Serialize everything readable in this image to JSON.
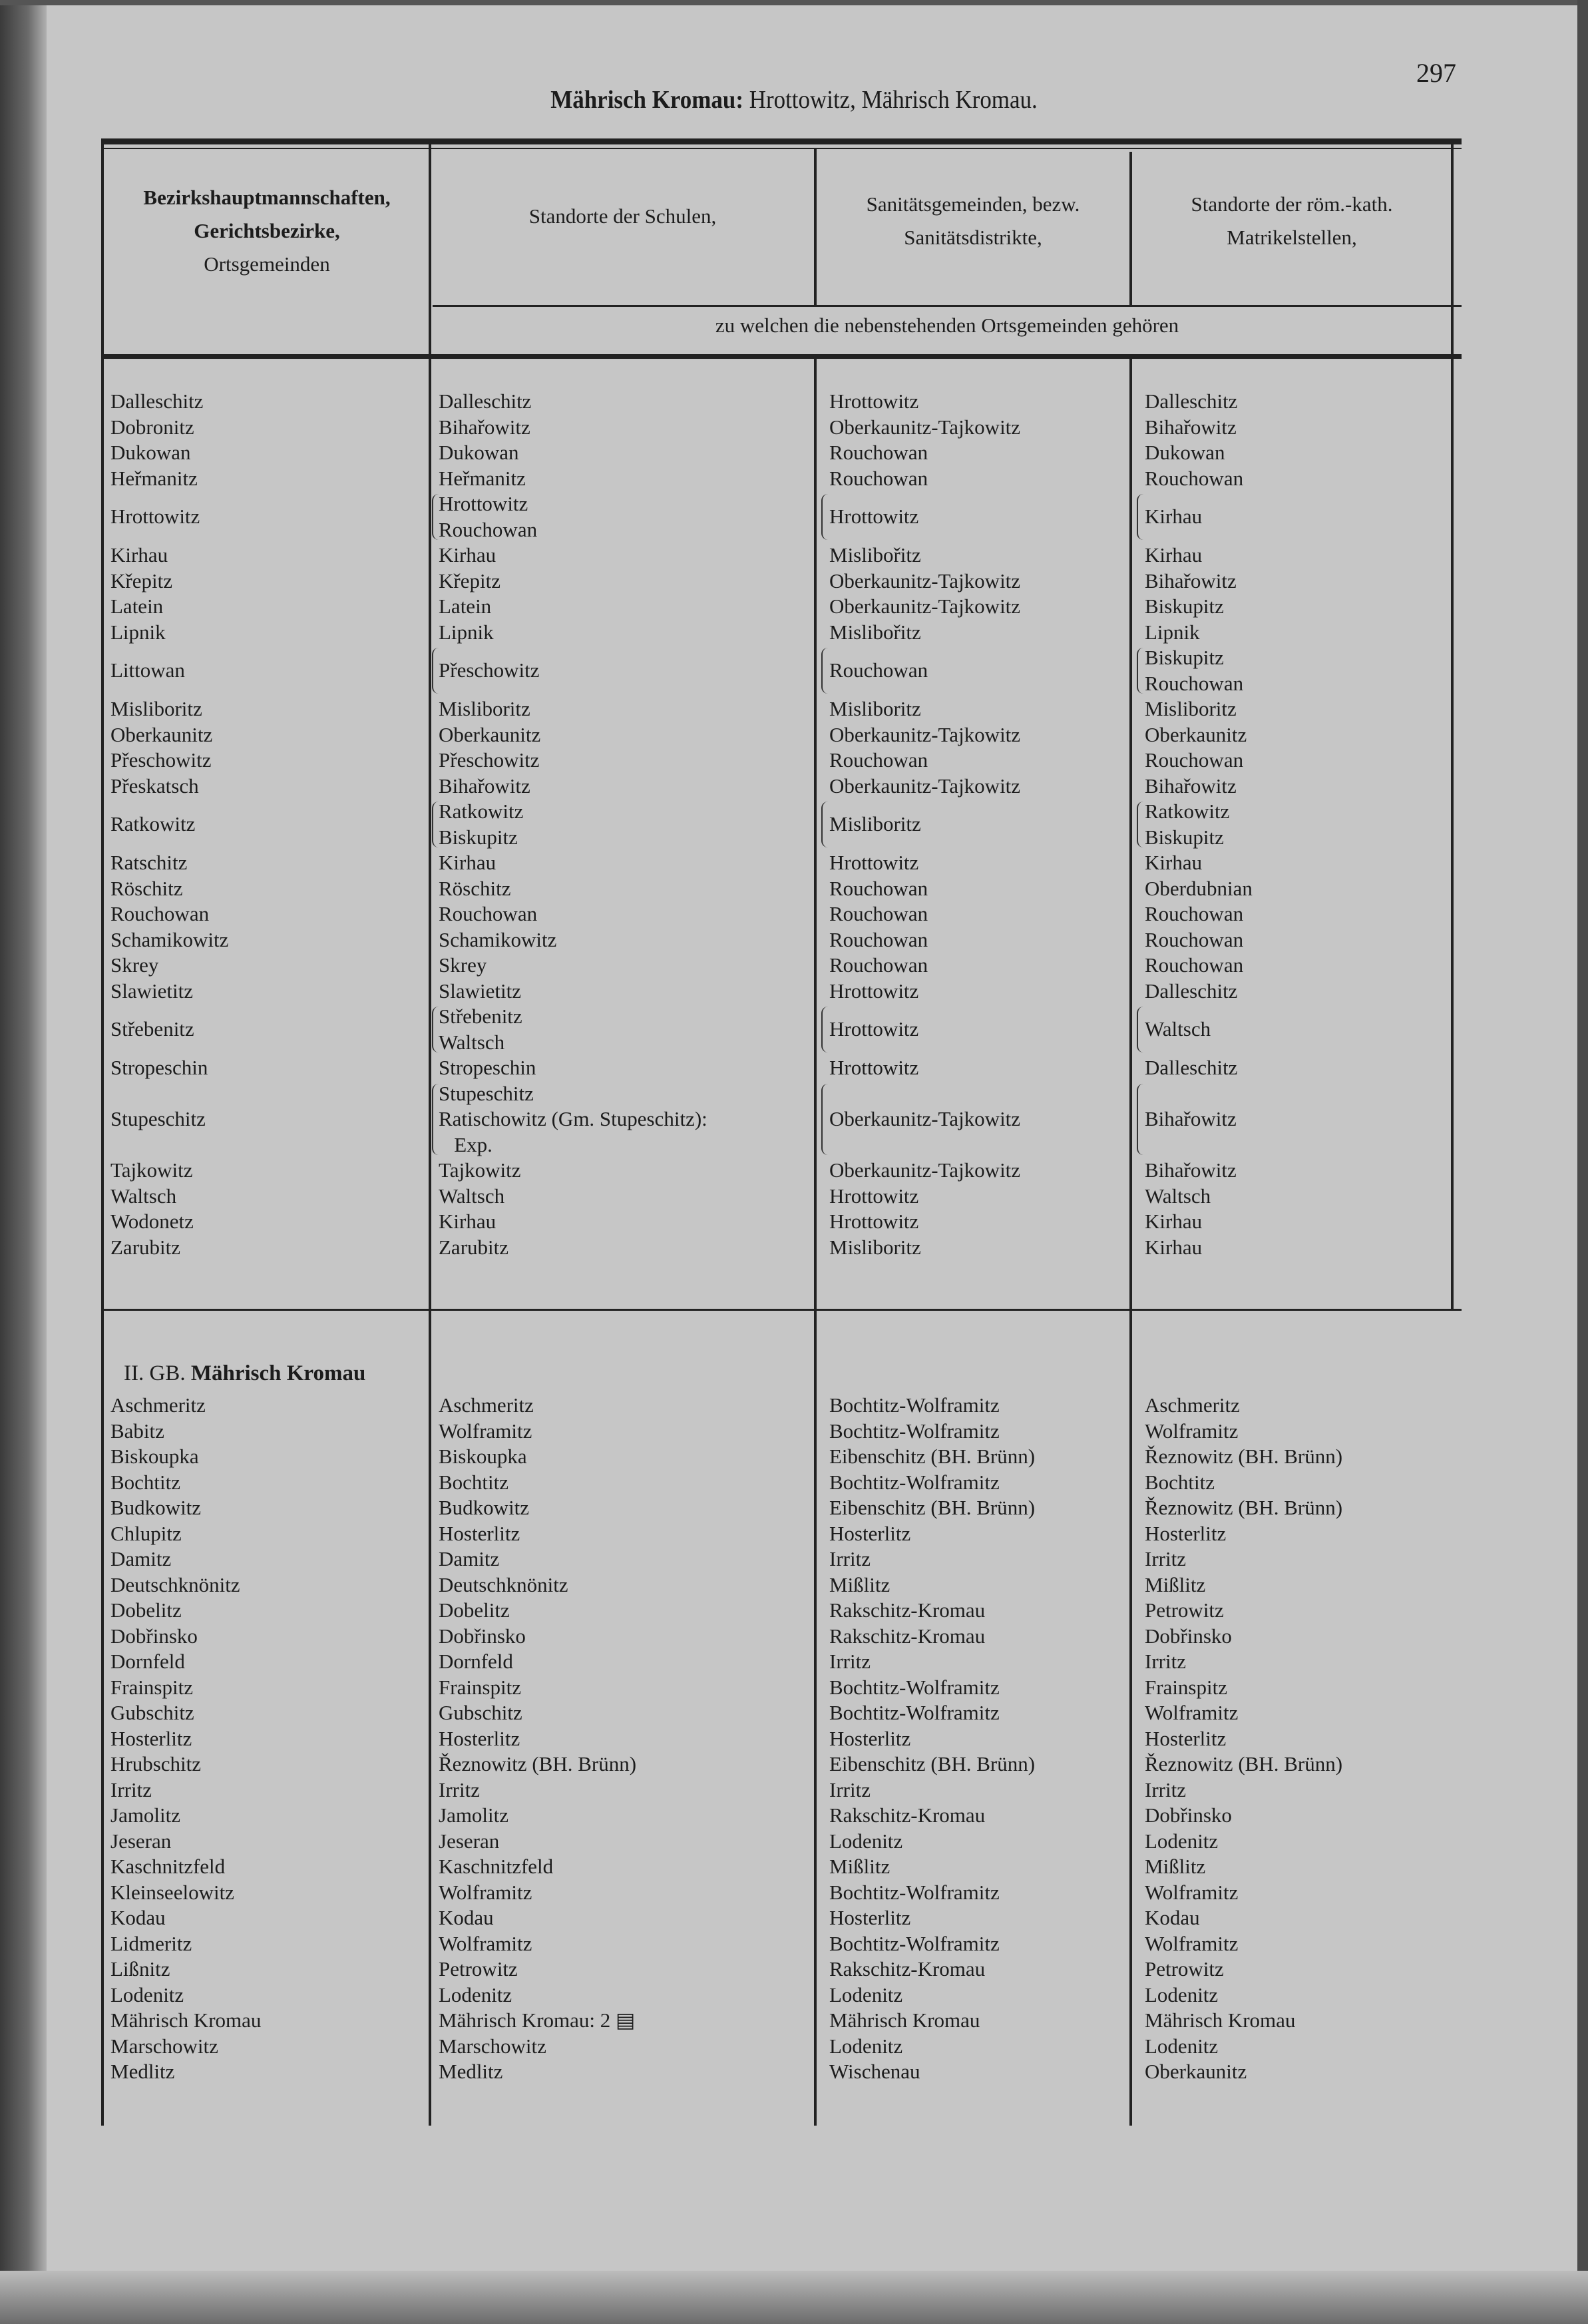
{
  "page": {
    "title_bold": "Mährisch Kromau:",
    "title_rest": " Hrottowitz, Mährisch Kromau.",
    "page_number": "297"
  },
  "header": {
    "col1": [
      "Bezirkshauptmannschaften,",
      "Gerichtsbezirke,",
      "Ortsgemeinden"
    ],
    "col2": "Standorte der Schulen,",
    "col3": [
      "Sanitätsgemeinden, bezw.",
      "Sanitätsdistrikte,"
    ],
    "col4": [
      "Standorte der röm.-kath.",
      "Matrikelstellen,"
    ],
    "subheader": "zu welchen die nebenstehenden Ortsgemeinden gehören"
  },
  "sections": [
    {
      "heading_prefix": "",
      "heading_bold": "",
      "rows": [
        [
          "Dalleschitz",
          [
            "Dalleschitz"
          ],
          [
            "Hrottowitz"
          ],
          [
            "Dalleschitz"
          ]
        ],
        [
          "Dobronitz",
          [
            "Bihařowitz"
          ],
          [
            "Oberkaunitz-Tajkowitz"
          ],
          [
            "Bihařowitz"
          ]
        ],
        [
          "Dukowan",
          [
            "Dukowan"
          ],
          [
            "Rouchowan"
          ],
          [
            "Dukowan"
          ]
        ],
        [
          "Heřmanitz",
          [
            "Heřmanitz"
          ],
          [
            "Rouchowan"
          ],
          [
            "Rouchowan"
          ]
        ],
        [
          "Hrottowitz",
          [
            "Hrottowitz",
            "Rouchowan"
          ],
          [
            "Hrottowitz"
          ],
          [
            "Kirhau"
          ]
        ],
        [
          "Kirhau",
          [
            "Kirhau"
          ],
          [
            "Mislibořitz"
          ],
          [
            "Kirhau"
          ]
        ],
        [
          "Křepitz",
          [
            "Křepitz"
          ],
          [
            "Oberkaunitz-Tajkowitz"
          ],
          [
            "Bihařowitz"
          ]
        ],
        [
          "Latein",
          [
            "Latein"
          ],
          [
            "Oberkaunitz-Tajkowitz"
          ],
          [
            "Biskupitz"
          ]
        ],
        [
          "Lipnik",
          [
            "Lipnik"
          ],
          [
            "Mislibořitz"
          ],
          [
            "Lipnik"
          ]
        ],
        [
          "Littowan",
          [
            "Přeschowitz"
          ],
          [
            "Rouchowan"
          ],
          [
            "Biskupitz",
            "Rouchowan"
          ]
        ],
        [
          "Misliboritz",
          [
            "Misliboritz"
          ],
          [
            "Misliboritz"
          ],
          [
            "Misliboritz"
          ]
        ],
        [
          "Oberkaunitz",
          [
            "Oberkaunitz"
          ],
          [
            "Oberkaunitz-Tajkowitz"
          ],
          [
            "Oberkaunitz"
          ]
        ],
        [
          "Přeschowitz",
          [
            "Přeschowitz"
          ],
          [
            "Rouchowan"
          ],
          [
            "Rouchowan"
          ]
        ],
        [
          "Přeskatsch",
          [
            "Bihařowitz"
          ],
          [
            "Oberkaunitz-Tajkowitz"
          ],
          [
            "Bihařowitz"
          ]
        ],
        [
          "Ratkowitz",
          [
            "Ratkowitz",
            "Biskupitz"
          ],
          [
            "Misliboritz"
          ],
          [
            "Ratkowitz",
            "Biskupitz"
          ]
        ],
        [
          "Ratschitz",
          [
            "Kirhau"
          ],
          [
            "Hrottowitz"
          ],
          [
            "Kirhau"
          ]
        ],
        [
          "Röschitz",
          [
            "Röschitz"
          ],
          [
            "Rouchowan"
          ],
          [
            "Oberdubnian"
          ]
        ],
        [
          "Rouchowan",
          [
            "Rouchowan"
          ],
          [
            "Rouchowan"
          ],
          [
            "Rouchowan"
          ]
        ],
        [
          "Schamikowitz",
          [
            "Schamikowitz"
          ],
          [
            "Rouchowan"
          ],
          [
            "Rouchowan"
          ]
        ],
        [
          "Skrey",
          [
            "Skrey"
          ],
          [
            "Rouchowan"
          ],
          [
            "Rouchowan"
          ]
        ],
        [
          "Slawietitz",
          [
            "Slawietitz"
          ],
          [
            "Hrottowitz"
          ],
          [
            "Dalleschitz"
          ]
        ],
        [
          "Střebenitz",
          [
            "Střebenitz",
            "Waltsch"
          ],
          [
            "Hrottowitz"
          ],
          [
            "Waltsch"
          ]
        ],
        [
          "Stropeschin",
          [
            "Stropeschin"
          ],
          [
            "Hrottowitz"
          ],
          [
            "Dalleschitz"
          ]
        ],
        [
          "Stupeschitz",
          [
            "Stupeschitz",
            "Ratischowitz (Gm. Stupeschitz):",
            "   Exp."
          ],
          [
            "Oberkaunitz-Tajkowitz"
          ],
          [
            "Bihařowitz"
          ]
        ],
        [
          "Tajkowitz",
          [
            "Tajkowitz"
          ],
          [
            "Oberkaunitz-Tajkowitz"
          ],
          [
            "Bihařowitz"
          ]
        ],
        [
          "Waltsch",
          [
            "Waltsch"
          ],
          [
            "Hrottowitz"
          ],
          [
            "Waltsch"
          ]
        ],
        [
          "Wodonetz",
          [
            "Kirhau"
          ],
          [
            "Hrottowitz"
          ],
          [
            "Kirhau"
          ]
        ],
        [
          "Zarubitz",
          [
            "Zarubitz"
          ],
          [
            "Misliboritz"
          ],
          [
            "Kirhau"
          ]
        ]
      ]
    },
    {
      "heading_prefix": "II. GB. ",
      "heading_bold": "Mährisch Kromau",
      "rows": [
        [
          "Aschmeritz",
          [
            "Aschmeritz"
          ],
          [
            "Bochtitz-Wolframitz"
          ],
          [
            "Aschmeritz"
          ]
        ],
        [
          "Babitz",
          [
            "Wolframitz"
          ],
          [
            "Bochtitz-Wolframitz"
          ],
          [
            "Wolframitz"
          ]
        ],
        [
          "Biskoupka",
          [
            "Biskoupka"
          ],
          [
            "Eibenschitz (BH. Brünn)"
          ],
          [
            "Řeznowitz (BH. Brünn)"
          ]
        ],
        [
          "Bochtitz",
          [
            "Bochtitz"
          ],
          [
            "Bochtitz-Wolframitz"
          ],
          [
            "Bochtitz"
          ]
        ],
        [
          "Budkowitz",
          [
            "Budkowitz"
          ],
          [
            "Eibenschitz (BH. Brünn)"
          ],
          [
            "Řeznowitz (BH. Brünn)"
          ]
        ],
        [
          "Chlupitz",
          [
            "Hosterlitz"
          ],
          [
            "Hosterlitz"
          ],
          [
            "Hosterlitz"
          ]
        ],
        [
          "Damitz",
          [
            "Damitz"
          ],
          [
            "Irritz"
          ],
          [
            "Irritz"
          ]
        ],
        [
          "Deutschknönitz",
          [
            "Deutschknönitz"
          ],
          [
            "Mißlitz"
          ],
          [
            "Mißlitz"
          ]
        ],
        [
          "Dobelitz",
          [
            "Dobelitz"
          ],
          [
            "Rakschitz-Kromau"
          ],
          [
            "Petrowitz"
          ]
        ],
        [
          "Dobřinsko",
          [
            "Dobřinsko"
          ],
          [
            "Rakschitz-Kromau"
          ],
          [
            "Dobřinsko"
          ]
        ],
        [
          "Dornfeld",
          [
            "Dornfeld"
          ],
          [
            "Irritz"
          ],
          [
            "Irritz"
          ]
        ],
        [
          "Frainspitz",
          [
            "Frainspitz"
          ],
          [
            "Bochtitz-Wolframitz"
          ],
          [
            "Frainspitz"
          ]
        ],
        [
          "Gubschitz",
          [
            "Gubschitz"
          ],
          [
            "Bochtitz-Wolframitz"
          ],
          [
            "Wolframitz"
          ]
        ],
        [
          "Hosterlitz",
          [
            "Hosterlitz"
          ],
          [
            "Hosterlitz"
          ],
          [
            "Hosterlitz"
          ]
        ],
        [
          "Hrubschitz",
          [
            "Řeznowitz (BH. Brünn)"
          ],
          [
            "Eibenschitz (BH. Brünn)"
          ],
          [
            "Řeznowitz (BH. Brünn)"
          ]
        ],
        [
          "Irritz",
          [
            "Irritz"
          ],
          [
            "Irritz"
          ],
          [
            "Irritz"
          ]
        ],
        [
          "Jamolitz",
          [
            "Jamolitz"
          ],
          [
            "Rakschitz-Kromau"
          ],
          [
            "Dobřinsko"
          ]
        ],
        [
          "Jeseran",
          [
            "Jeseran"
          ],
          [
            "Lodenitz"
          ],
          [
            "Lodenitz"
          ]
        ],
        [
          "Kaschnitzfeld",
          [
            "Kaschnitzfeld"
          ],
          [
            "Mißlitz"
          ],
          [
            "Mißlitz"
          ]
        ],
        [
          "Kleinseelowitz",
          [
            "Wolframitz"
          ],
          [
            "Bochtitz-Wolframitz"
          ],
          [
            "Wolframitz"
          ]
        ],
        [
          "Kodau",
          [
            "Kodau"
          ],
          [
            "Hosterlitz"
          ],
          [
            "Kodau"
          ]
        ],
        [
          "Lidmeritz",
          [
            "Wolframitz"
          ],
          [
            "Bochtitz-Wolframitz"
          ],
          [
            "Wolframitz"
          ]
        ],
        [
          "Lißnitz",
          [
            "Petrowitz"
          ],
          [
            "Rakschitz-Kromau"
          ],
          [
            "Petrowitz"
          ]
        ],
        [
          "Lodenitz",
          [
            "Lodenitz"
          ],
          [
            "Lodenitz"
          ],
          [
            "Lodenitz"
          ]
        ],
        [
          "Mährisch Kromau",
          [
            "Mährisch Kromau: 2 ▤"
          ],
          [
            "Mährisch Kromau"
          ],
          [
            "Mährisch Kromau"
          ]
        ],
        [
          "Marschowitz",
          [
            "Marschowitz"
          ],
          [
            "Lodenitz"
          ],
          [
            "Lodenitz"
          ]
        ],
        [
          "Medlitz",
          [
            "Medlitz"
          ],
          [
            "Wischenau"
          ],
          [
            "Oberkaunitz"
          ]
        ]
      ]
    }
  ]
}
